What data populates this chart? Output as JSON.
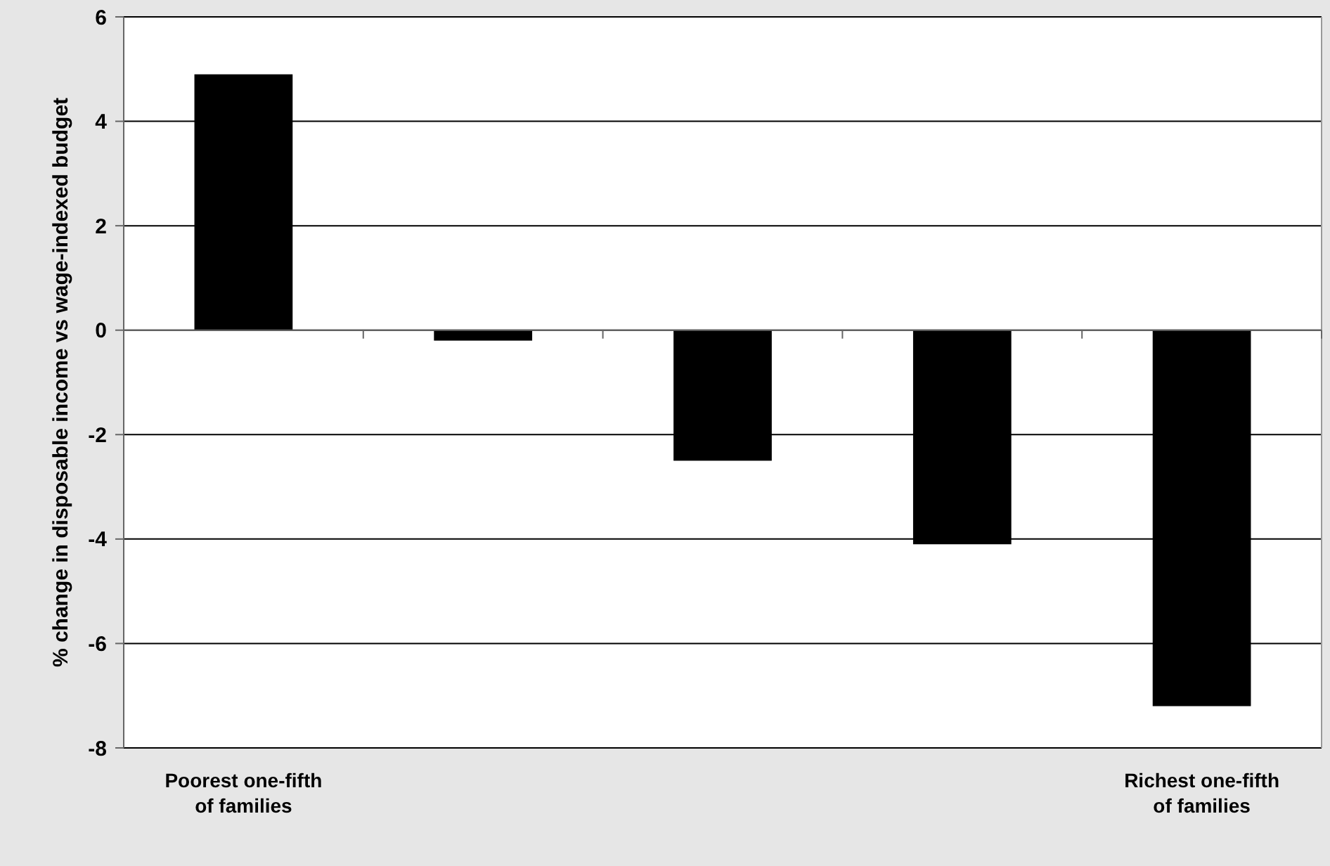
{
  "chart_data": {
    "type": "bar",
    "ylabel": "% change in disposable income vs wage-indexed budget",
    "categories": [
      "Poorest one-fifth of families",
      null,
      null,
      null,
      "Richest one-fifth of families"
    ],
    "values": [
      4.9,
      -0.2,
      -2.5,
      -4.1,
      -7.2
    ],
    "color": "#000000",
    "ylim": [
      -8,
      6
    ],
    "yticks": [
      -8,
      -6,
      -4,
      -2,
      0,
      2,
      4,
      6
    ],
    "grid": "y"
  }
}
